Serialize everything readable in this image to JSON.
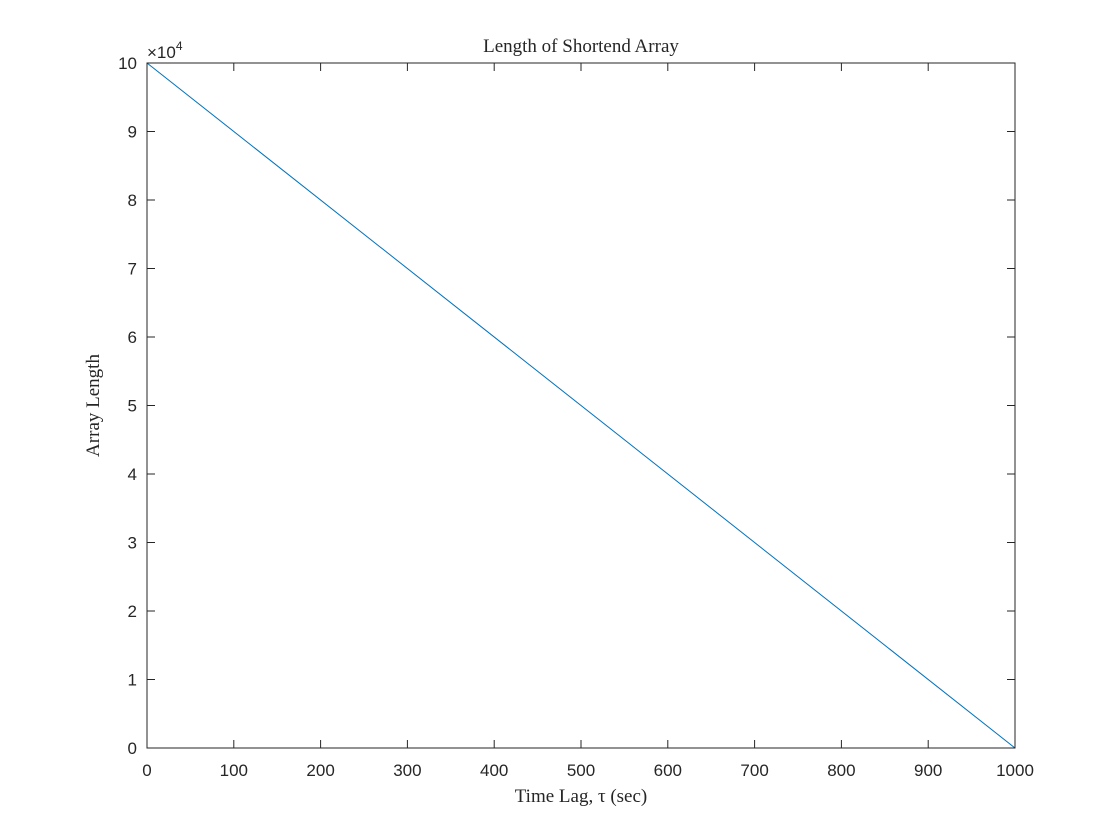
{
  "chart_data": {
    "type": "line",
    "title": "Length of Shortend Array",
    "xlabel": "Time Lag, τ (sec)",
    "ylabel": "Array Length",
    "xlim": [
      0,
      1000
    ],
    "ylim": [
      0,
      100000
    ],
    "x_ticks": [
      0,
      100,
      200,
      300,
      400,
      500,
      600,
      700,
      800,
      900,
      1000
    ],
    "x_tick_labels": [
      "0",
      "100",
      "200",
      "300",
      "400",
      "500",
      "600",
      "700",
      "800",
      "900",
      "1000"
    ],
    "y_ticks": [
      0,
      10000,
      20000,
      30000,
      40000,
      50000,
      60000,
      70000,
      80000,
      90000,
      100000
    ],
    "y_tick_labels": [
      "0",
      "1",
      "2",
      "3",
      "4",
      "5",
      "6",
      "7",
      "8",
      "9",
      "10"
    ],
    "y_exponent_base": "×10",
    "y_exponent_power": "4",
    "grid": false,
    "series": [
      {
        "color": "#0072BD",
        "x": [
          0,
          1000
        ],
        "y": [
          100000,
          0
        ]
      }
    ]
  }
}
